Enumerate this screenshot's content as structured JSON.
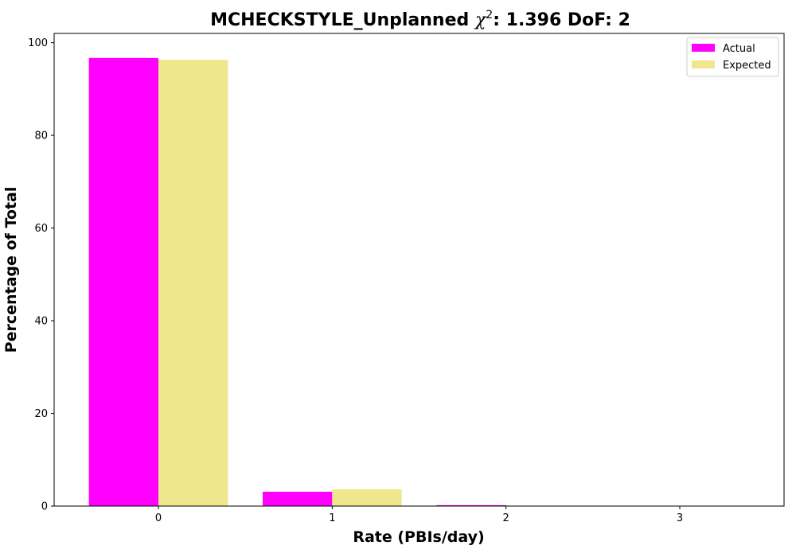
{
  "chart_data": {
    "type": "bar",
    "title_main": "MCHECKSTYLE_Unplanned ",
    "title_chi": "χ",
    "title_sup": "2",
    "title_rest": ": 1.396 DoF: 2",
    "xlabel": "Rate (PBIs/day)",
    "ylabel": "Percentage of Total",
    "categories": [
      "0",
      "1",
      "2",
      "3"
    ],
    "x": [
      0,
      1,
      2,
      3
    ],
    "xlim": [
      -0.6,
      3.6
    ],
    "ylim": [
      0,
      102
    ],
    "yticks": [
      0,
      20,
      40,
      60,
      80,
      100
    ],
    "grid": false,
    "legend_position": "top-right",
    "series": [
      {
        "name": "Actual",
        "color": "#ff00ff",
        "values": [
          96.7,
          3.1,
          0.2,
          0.0
        ]
      },
      {
        "name": "Expected",
        "color": "#f0e68c",
        "values": [
          96.3,
          3.6,
          0.1,
          0.0
        ]
      }
    ]
  }
}
